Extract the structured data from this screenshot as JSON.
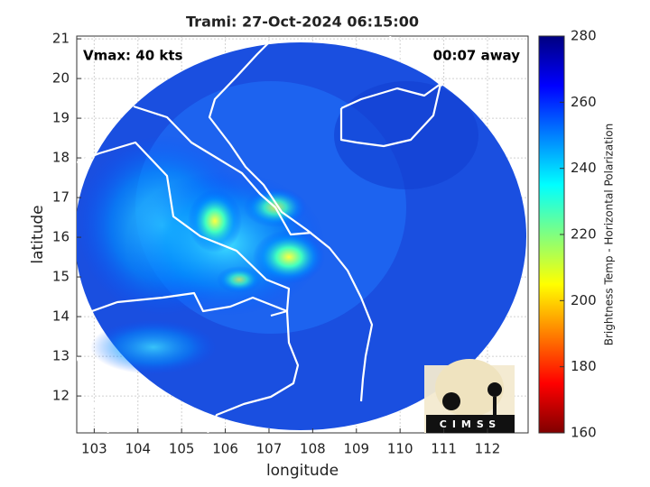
{
  "chart_data": {
    "type": "map",
    "title": "Trami: 27-Oct-2024 06:15:00",
    "x_label": "longitude",
    "y_label": "latitude",
    "xlim": [
      102.6,
      112.93
    ],
    "ylim": [
      11.07,
      21.07
    ],
    "xticks": [
      103,
      104,
      105,
      106,
      107,
      108,
      109,
      110,
      111,
      112
    ],
    "yticks": [
      12,
      13,
      14,
      15,
      16,
      17,
      18,
      19,
      20,
      21
    ],
    "grid": true,
    "annotations": [
      "Vmax: 40 kts",
      "00:07 away"
    ],
    "colorbar": {
      "label": "Brightness Temp - Horizontal Polarization",
      "lim": [
        160,
        280
      ],
      "ticks": [
        160,
        180,
        200,
        220,
        240,
        260,
        280
      ],
      "colormap": [
        "#800000",
        "#ff0000",
        "#ff8000",
        "#ffff00",
        "#80ff80",
        "#00ffff",
        "#0080ff",
        "#0000ff",
        "#000080"
      ]
    }
  },
  "logo": "CIMSS"
}
